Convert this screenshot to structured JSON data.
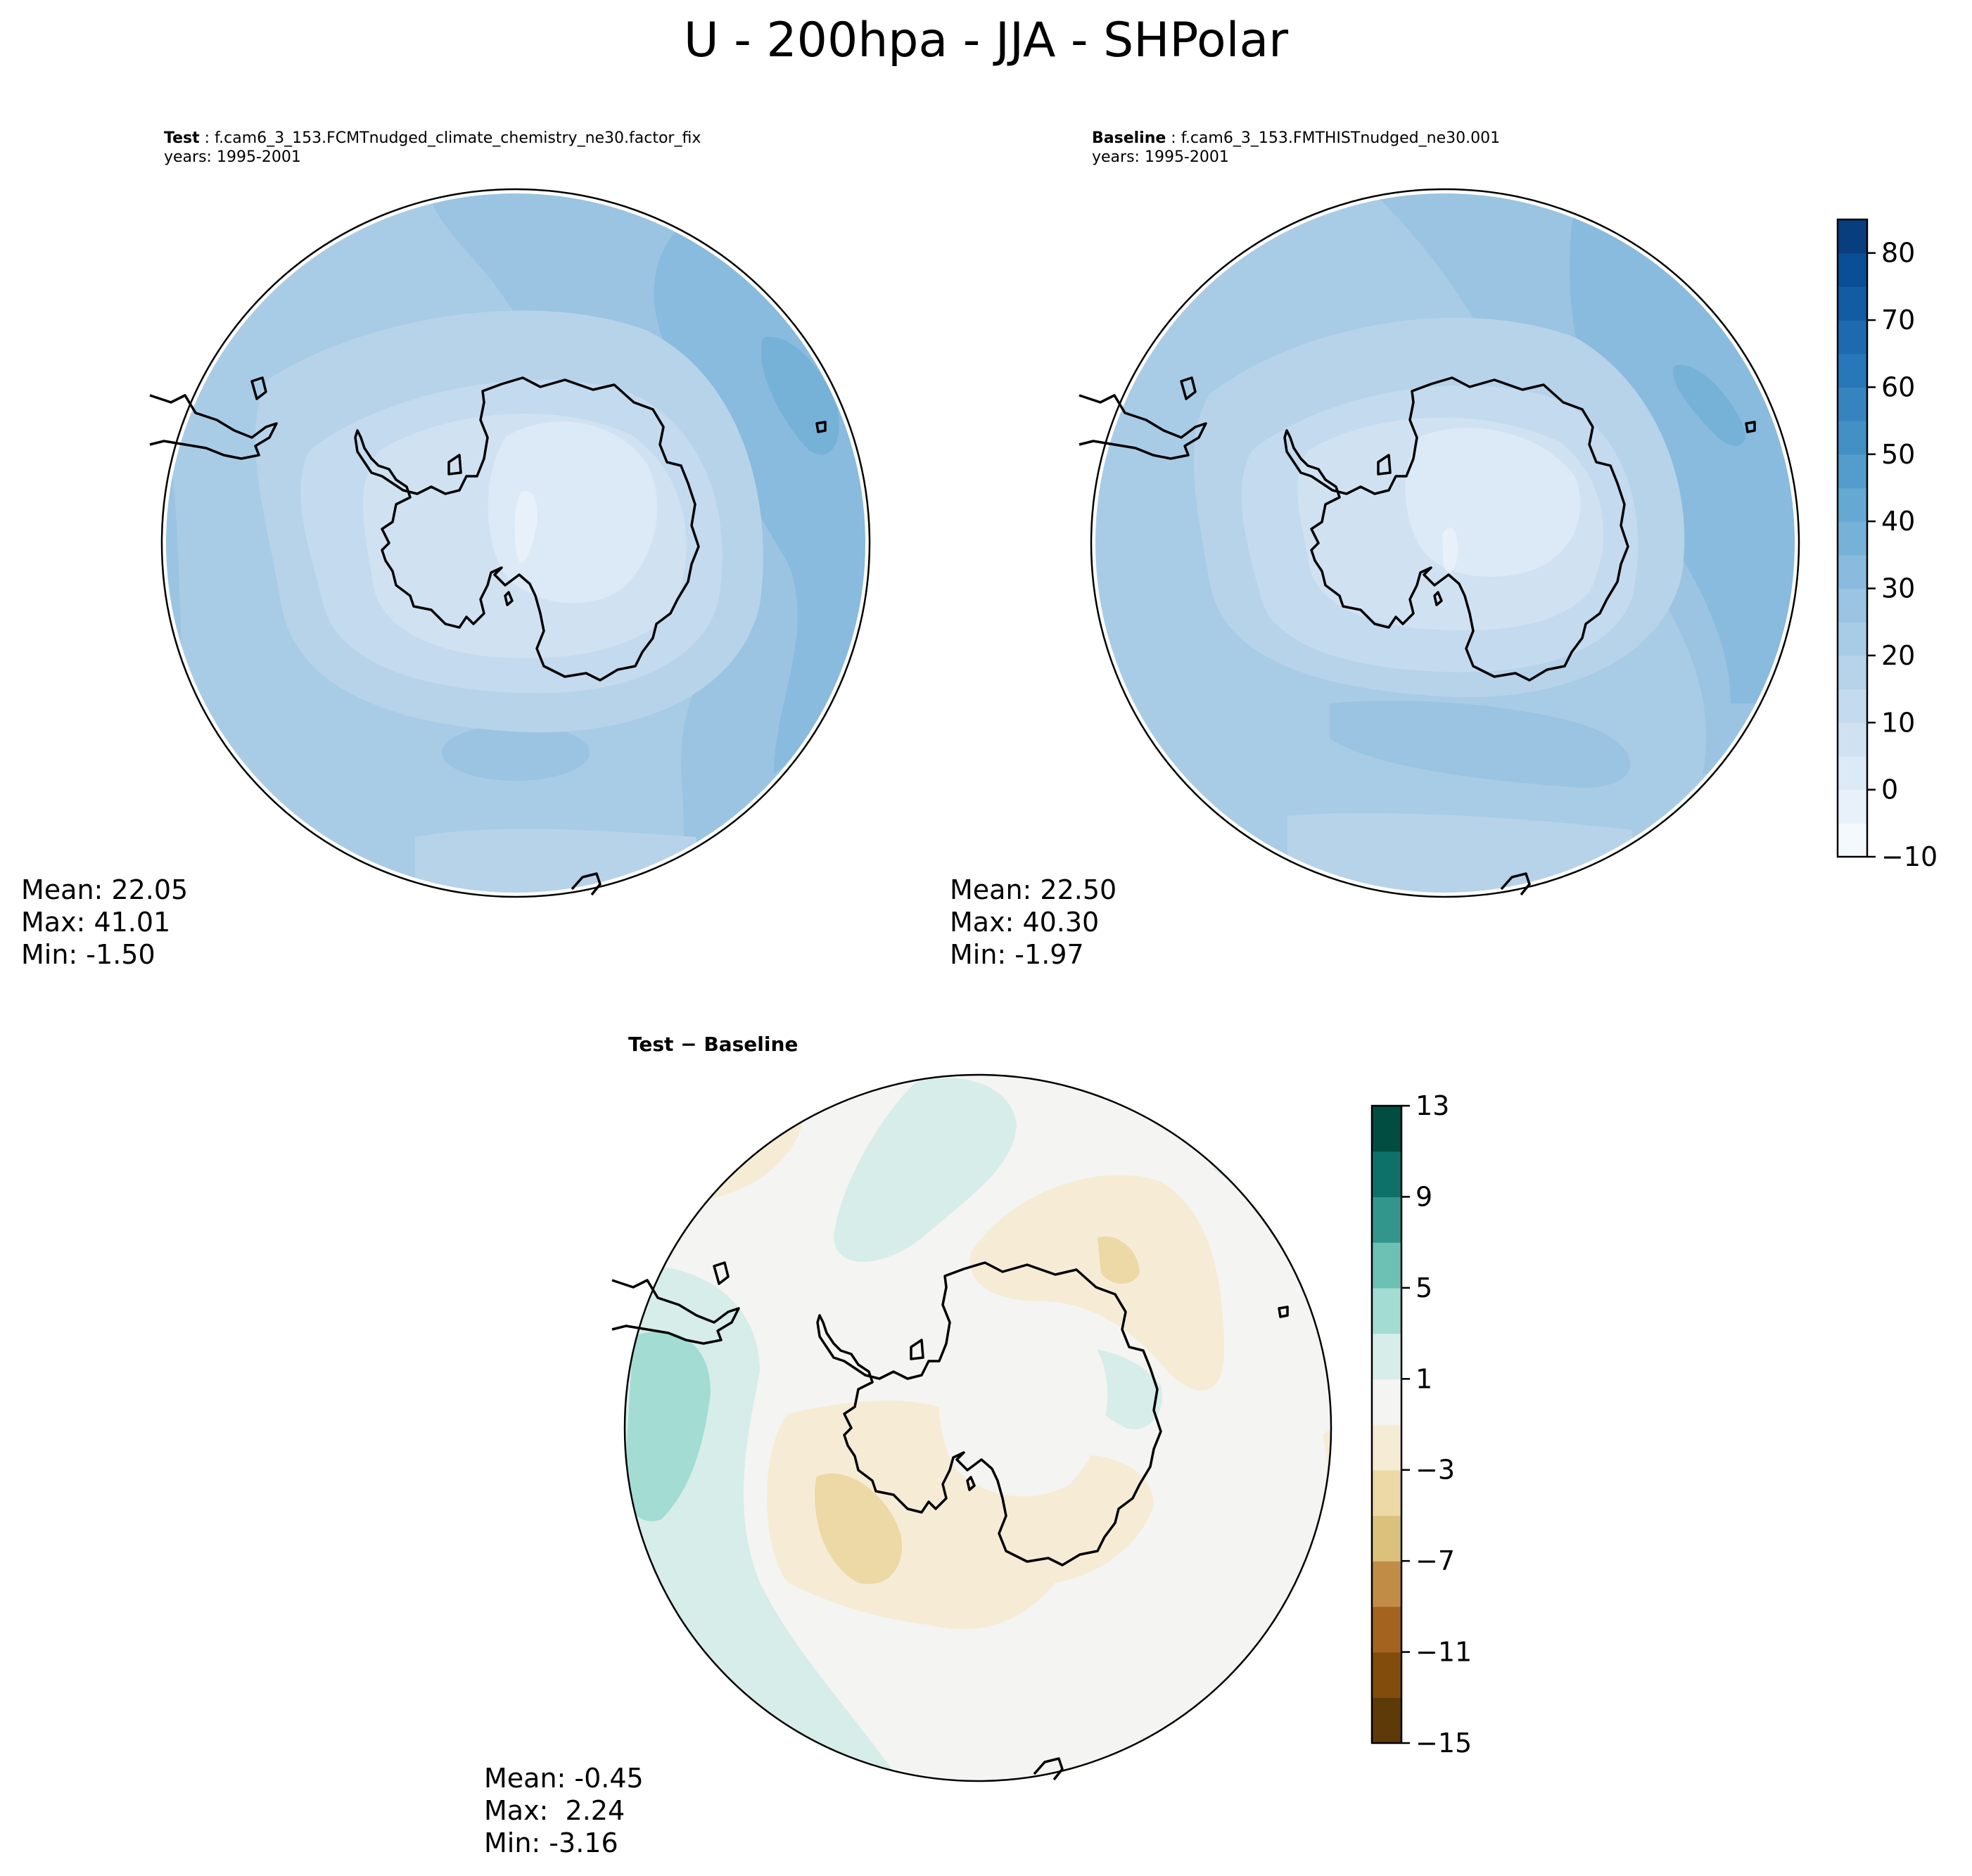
{
  "figure": {
    "title": "U - 200hpa - JJA - SHPolar"
  },
  "test_panel": {
    "label": "Test",
    "case": " : f.cam6_3_153.FCMTnudged_climate_chemistry_ne30.factor_fix",
    "years": "years: 1995-2001",
    "stats": {
      "mean": "Mean: 22.05",
      "max": "Max: 41.01",
      "min": "Min: -1.50"
    }
  },
  "baseline_panel": {
    "label": "Baseline",
    "case": " : f.cam6_3_153.FMTHISTnudged_ne30.001",
    "years": "years: 1995-2001",
    "stats": {
      "mean": "Mean: 22.50",
      "max": "Max: 40.30",
      "min": "Min: -1.97"
    }
  },
  "diff_panel": {
    "title": "Test − Baseline",
    "stats": {
      "mean": "Mean: -0.45",
      "max": "Max:  2.24",
      "min": "Min: -3.16"
    }
  },
  "colorbar_main": {
    "levels": [
      -10,
      -5,
      0,
      5,
      10,
      15,
      20,
      25,
      30,
      35,
      40,
      45,
      50,
      55,
      60,
      65,
      70,
      75,
      80,
      85
    ],
    "tick_values": [
      -10,
      0,
      10,
      20,
      30,
      40,
      50,
      60,
      70,
      80
    ],
    "tick_labels": [
      "−10",
      "0",
      "10",
      "20",
      "30",
      "40",
      "50",
      "60",
      "70",
      "80"
    ],
    "colors": [
      "#f4f9fe",
      "#e8f1fa",
      "#dce9f6",
      "#d0e2f2",
      "#c4daee",
      "#b7d3ea",
      "#a9cce6",
      "#9ac4e2",
      "#88bbdd",
      "#76b1d8",
      "#64a8d3",
      "#539ccc",
      "#4390c5",
      "#3584bf",
      "#2877b8",
      "#1d6aaf",
      "#125ca4",
      "#0a4f96",
      "#083d7e",
      "#08306b"
    ]
  },
  "colorbar_diff": {
    "levels": [
      -15,
      -13,
      -11,
      -9,
      -7,
      -5,
      -3,
      -1,
      1,
      3,
      5,
      7,
      9,
      11,
      13
    ],
    "tick_values": [
      -15,
      -11,
      -7,
      -3,
      1,
      5,
      9,
      13
    ],
    "tick_labels": [
      "−15",
      "−11",
      "−7",
      "−3",
      "1",
      "5",
      "9",
      "13"
    ],
    "colors": [
      "#5e3a09",
      "#824d0c",
      "#a46420",
      "#c18d46",
      "#dbc17c",
      "#ecd9a6",
      "#f6ecd6",
      "#f4f4f2",
      "#d6ede9",
      "#a3dcd3",
      "#6dc1b4",
      "#33968d",
      "#0d716a",
      "#014d42"
    ]
  }
}
